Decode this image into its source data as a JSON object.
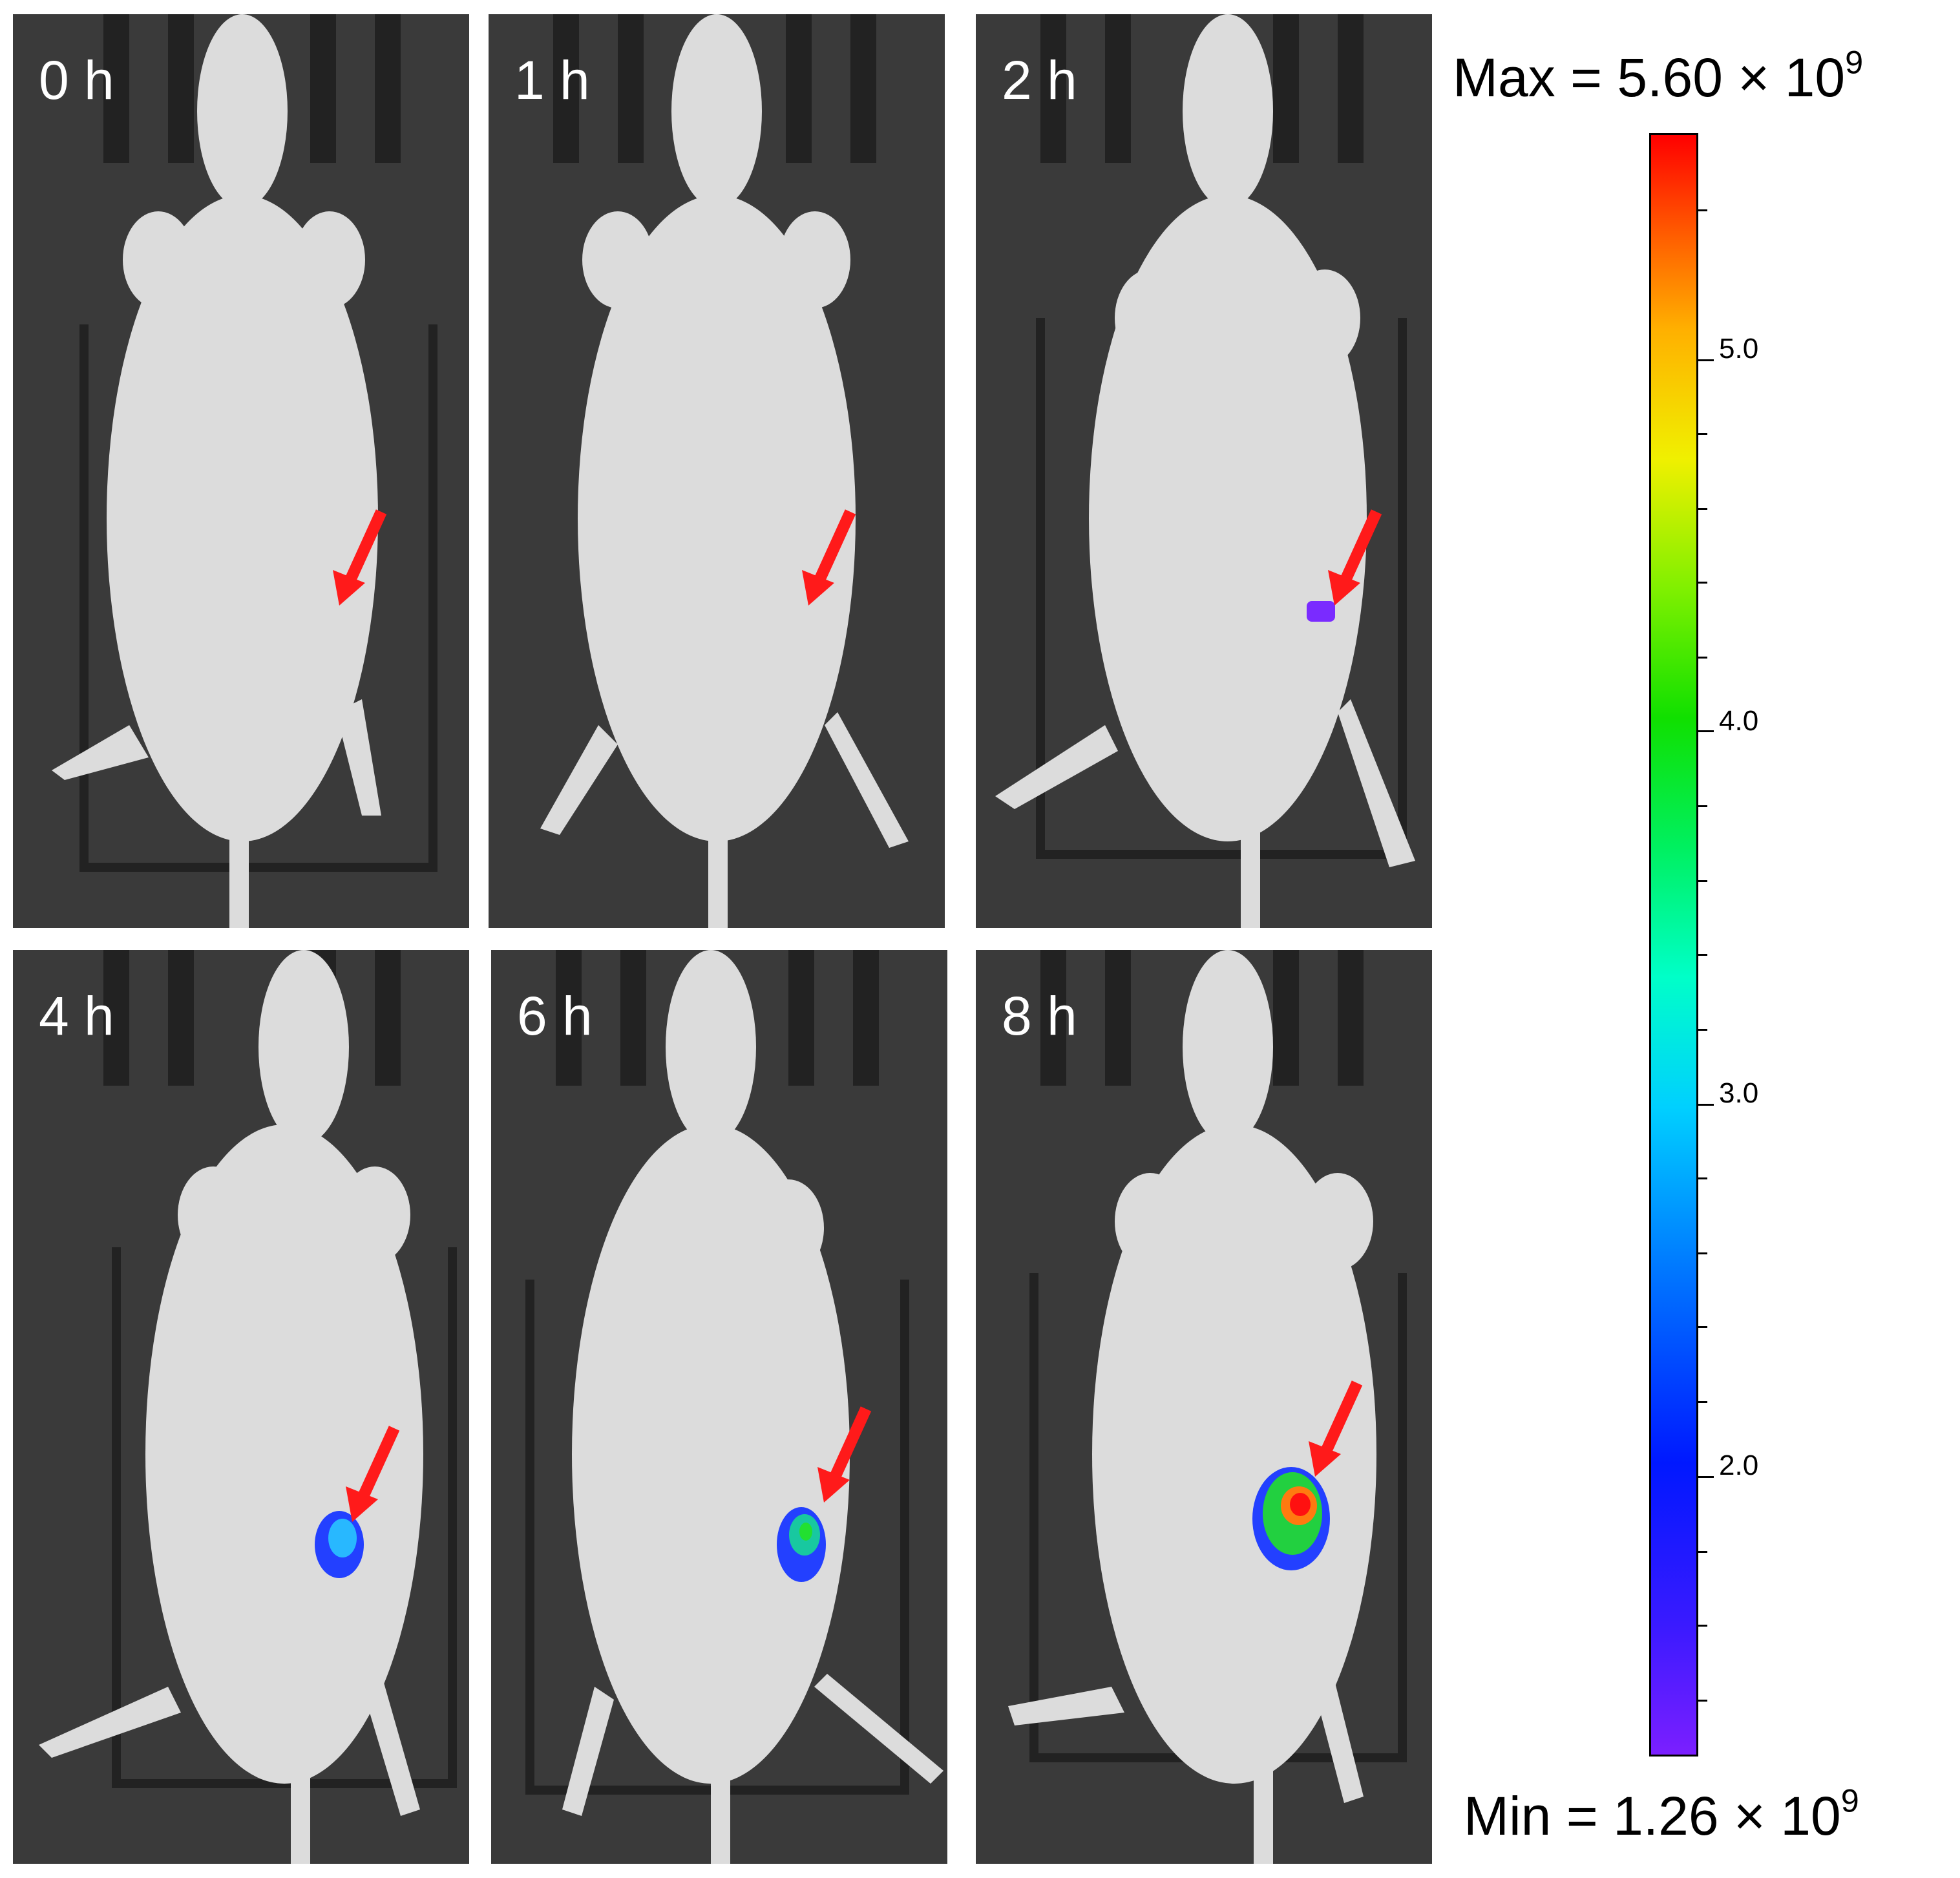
{
  "panels": [
    {
      "label": "0 h"
    },
    {
      "label": "1 h"
    },
    {
      "label": "2 h"
    },
    {
      "label": "4 h"
    },
    {
      "label": "6 h"
    },
    {
      "label": "8 h"
    }
  ],
  "scale": {
    "max_prefix": "Max = 5.60 × 10",
    "min_prefix": "Min = 1.26 × 10",
    "exponent": "9",
    "tick_labels": [
      "5.0",
      "4.0",
      "3.0",
      "2.0"
    ]
  },
  "colors": {
    "arrow": "#ff1a1a",
    "background": "#3a3a3a",
    "mouse": "#d8d8d8"
  }
}
